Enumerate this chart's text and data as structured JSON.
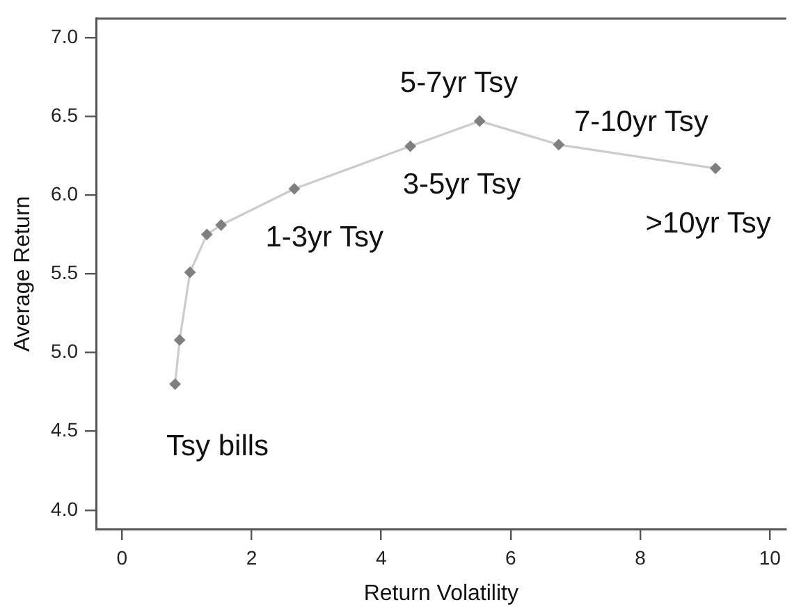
{
  "chart_data": {
    "type": "line",
    "xlabel": "Return Volatility",
    "ylabel": "Average Return",
    "x": [
      0.82,
      0.89,
      1.05,
      1.31,
      1.53,
      2.66,
      4.45,
      5.52,
      6.74,
      9.16
    ],
    "values": [
      4.8,
      5.08,
      5.51,
      5.75,
      5.81,
      6.04,
      6.31,
      6.47,
      6.32,
      6.17
    ],
    "color": "#7f7f7f",
    "xlim": [
      -0.4,
      10.25
    ],
    "xticks": [
      0,
      2,
      4,
      6,
      8,
      10
    ],
    "ylim": [
      3.88,
      7.12
    ],
    "yticks": [
      {
        "value": 4,
        "label": "4.0"
      },
      4.5,
      {
        "value": 5,
        "label": "5.0"
      },
      5.5,
      {
        "value": 6,
        "label": "6.0"
      },
      6.5,
      {
        "value": 7,
        "label": "7.0"
      }
    ],
    "annotations": [
      "Tsy bills",
      "1-3yr Tsy",
      "3-5yr Tsy",
      "5-7yr Tsy",
      "7-10yr Tsy",
      ">10yr Tsy"
    ],
    "grid": false,
    "legend": false,
    "marker": "diamond",
    "line_style": "solid"
  }
}
